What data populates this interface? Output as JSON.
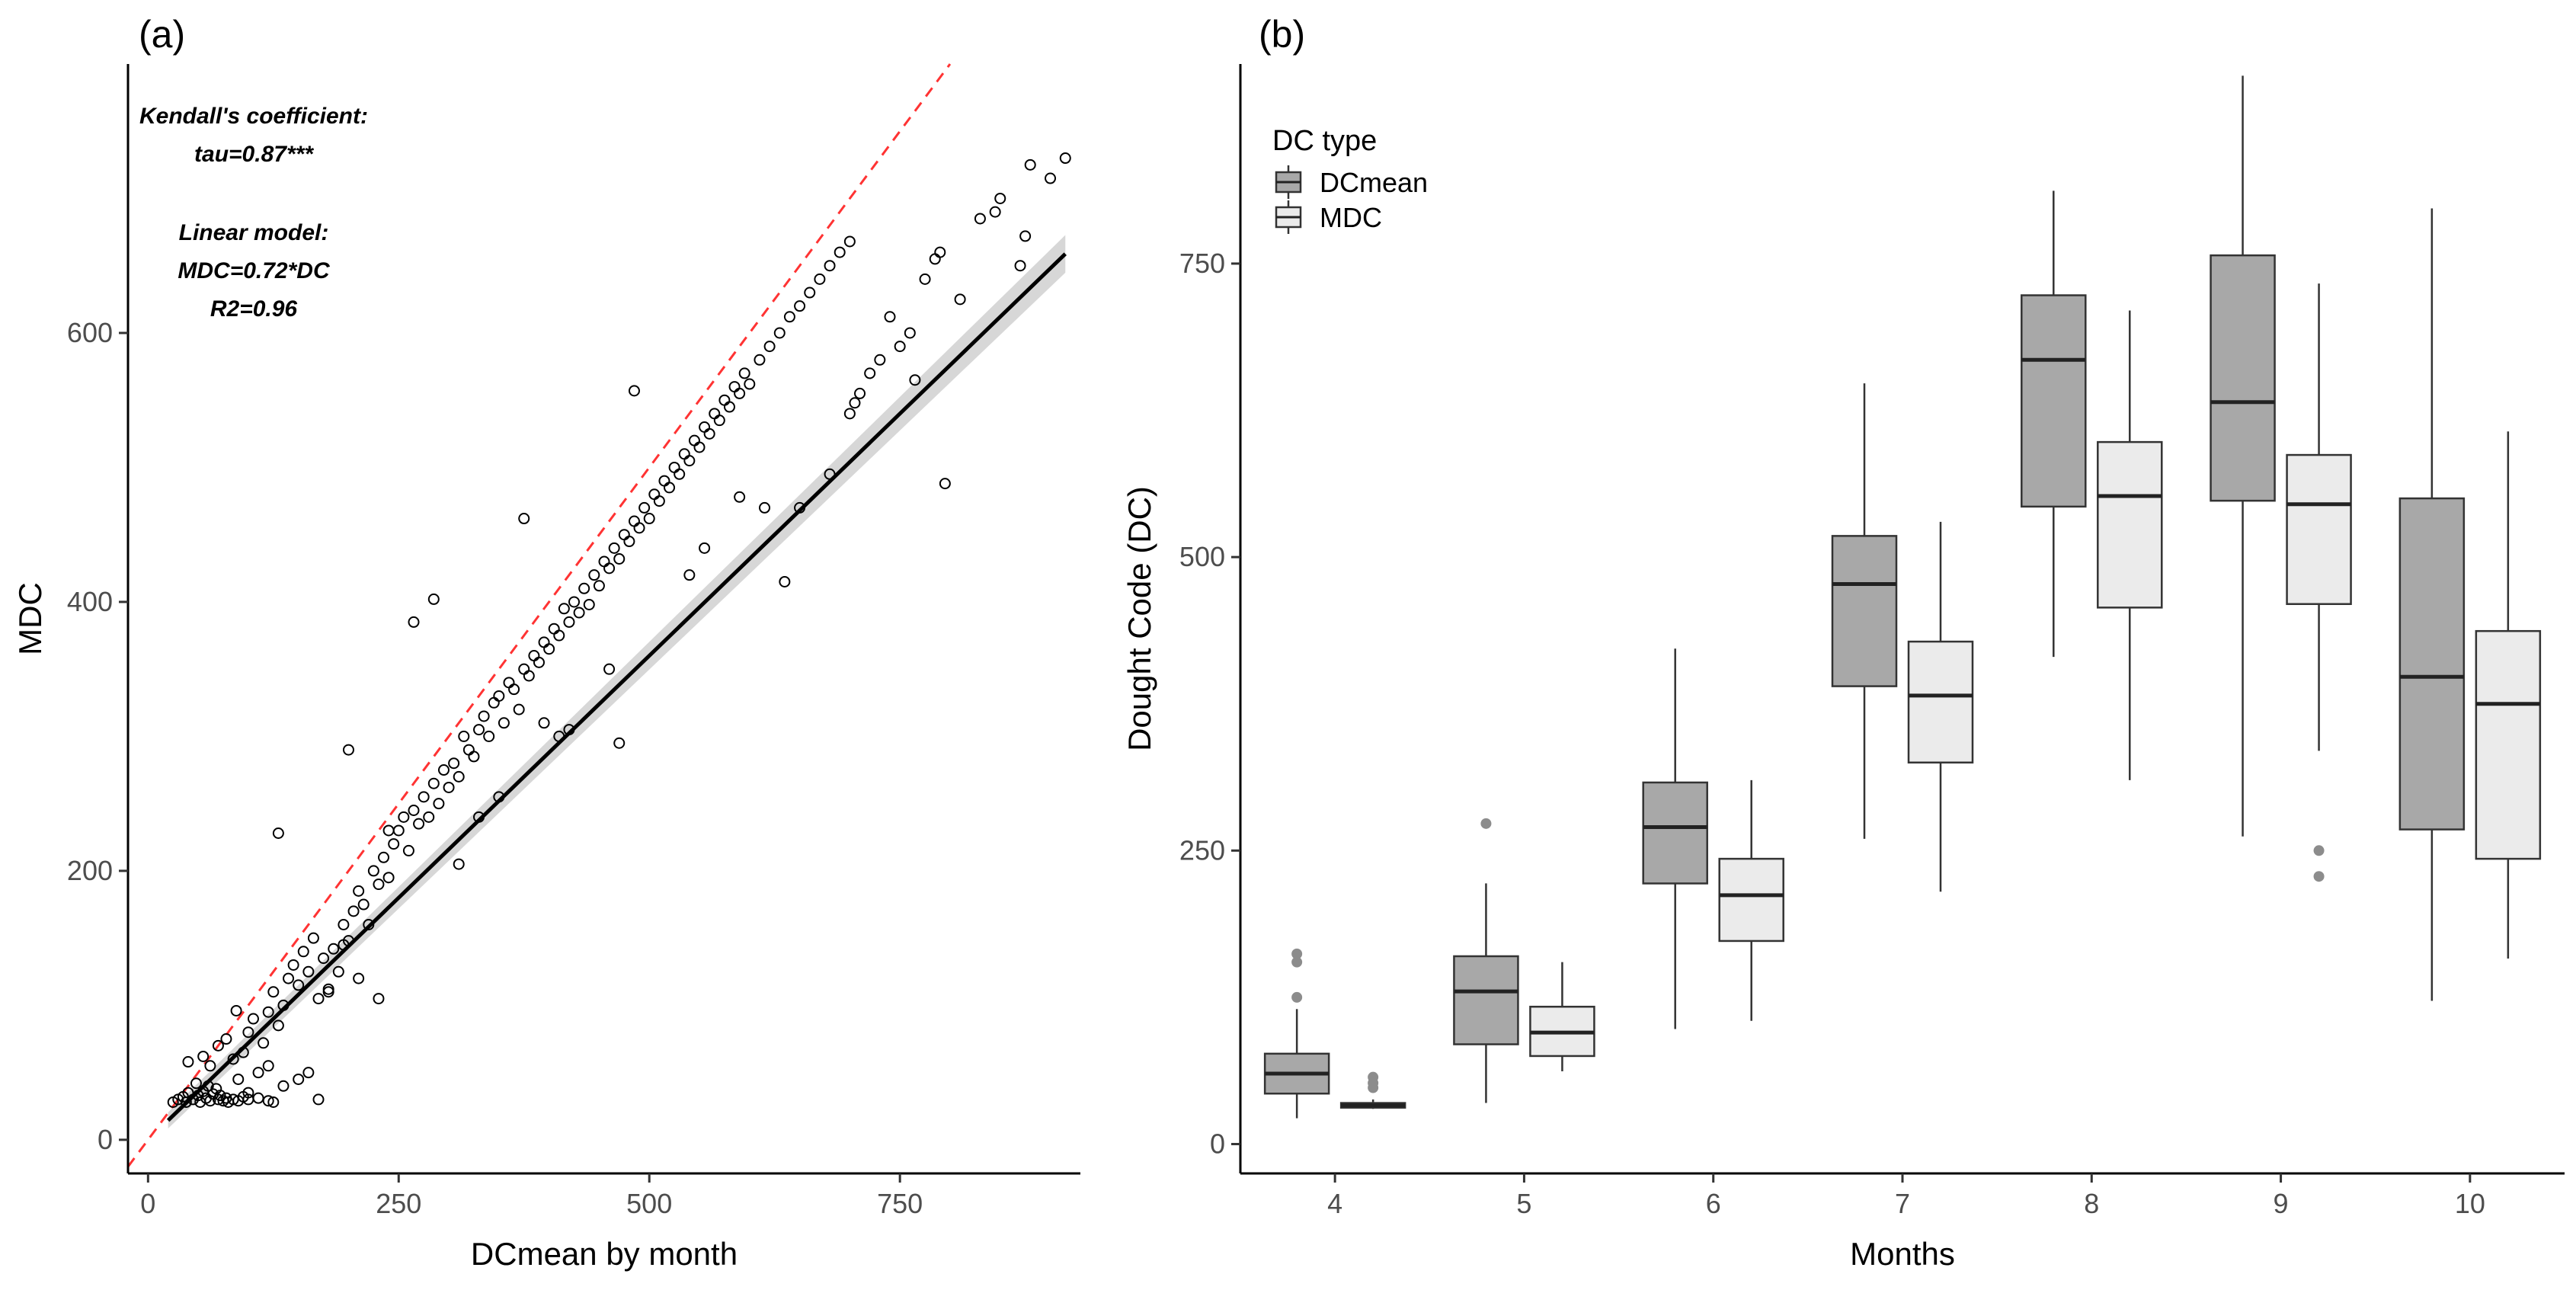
{
  "chart_data": [
    {
      "panel": "(a)",
      "type": "scatter",
      "xlabel": "DCmean by month",
      "ylabel": "MDC",
      "xlim": [
        -20,
        930
      ],
      "ylim": [
        -25,
        800
      ],
      "xticks": [
        0,
        250,
        500,
        750
      ],
      "yticks": [
        0,
        200,
        400,
        600
      ],
      "grid": false,
      "annotations": [
        "Kendall's coefficient:",
        "tau=0.87***",
        "Linear model:",
        "MDC=0.72*DC",
        "R2=0.96"
      ],
      "reference_line": {
        "style": "dashed",
        "color": "#ff3333",
        "slope": 1,
        "intercept": 0
      },
      "fit_line": {
        "color": "#000000",
        "slope": 0.72,
        "x_range": [
          20,
          915
        ]
      },
      "point_color": "#000000",
      "points": [
        [
          25,
          28
        ],
        [
          30,
          30
        ],
        [
          35,
          32
        ],
        [
          38,
          28
        ],
        [
          40,
          35
        ],
        [
          45,
          30
        ],
        [
          48,
          42
        ],
        [
          50,
          33
        ],
        [
          52,
          28
        ],
        [
          55,
          36
        ],
        [
          58,
          31
        ],
        [
          60,
          40
        ],
        [
          62,
          29
        ],
        [
          65,
          34
        ],
        [
          68,
          38
        ],
        [
          70,
          30
        ],
        [
          72,
          33
        ],
        [
          75,
          29
        ],
        [
          78,
          31
        ],
        [
          80,
          28
        ],
        [
          85,
          30
        ],
        [
          90,
          29
        ],
        [
          95,
          32
        ],
        [
          100,
          30
        ],
        [
          110,
          31
        ],
        [
          120,
          29
        ],
        [
          125,
          28
        ],
        [
          40,
          58
        ],
        [
          55,
          62
        ],
        [
          62,
          55
        ],
        [
          70,
          70
        ],
        [
          78,
          75
        ],
        [
          85,
          60
        ],
        [
          88,
          96
        ],
        [
          95,
          65
        ],
        [
          100,
          80
        ],
        [
          105,
          90
        ],
        [
          110,
          50
        ],
        [
          115,
          72
        ],
        [
          120,
          95
        ],
        [
          125,
          110
        ],
        [
          130,
          85
        ],
        [
          135,
          100
        ],
        [
          140,
          120
        ],
        [
          145,
          130
        ],
        [
          150,
          115
        ],
        [
          155,
          140
        ],
        [
          160,
          125
        ],
        [
          165,
          150
        ],
        [
          170,
          105
        ],
        [
          175,
          135
        ],
        [
          180,
          112
        ],
        [
          185,
          142
        ],
        [
          190,
          125
        ],
        [
          195,
          160
        ],
        [
          200,
          148
        ],
        [
          205,
          170
        ],
        [
          210,
          185
        ],
        [
          215,
          175
        ],
        [
          220,
          160
        ],
        [
          225,
          200
        ],
        [
          230,
          190
        ],
        [
          235,
          210
        ],
        [
          240,
          195
        ],
        [
          245,
          220
        ],
        [
          250,
          230
        ],
        [
          255,
          240
        ],
        [
          260,
          215
        ],
        [
          265,
          245
        ],
        [
          270,
          235
        ],
        [
          275,
          255
        ],
        [
          280,
          240
        ],
        [
          285,
          265
        ],
        [
          290,
          250
        ],
        [
          295,
          275
        ],
        [
          300,
          262
        ],
        [
          305,
          280
        ],
        [
          310,
          270
        ],
        [
          315,
          300
        ],
        [
          320,
          290
        ],
        [
          325,
          285
        ],
        [
          330,
          305
        ],
        [
          335,
          315
        ],
        [
          340,
          300
        ],
        [
          345,
          325
        ],
        [
          350,
          330
        ],
        [
          355,
          310
        ],
        [
          360,
          340
        ],
        [
          365,
          335
        ],
        [
          370,
          320
        ],
        [
          375,
          350
        ],
        [
          380,
          345
        ],
        [
          385,
          360
        ],
        [
          390,
          355
        ],
        [
          395,
          370
        ],
        [
          400,
          365
        ],
        [
          405,
          380
        ],
        [
          410,
          375
        ],
        [
          415,
          395
        ],
        [
          420,
          385
        ],
        [
          425,
          400
        ],
        [
          430,
          392
        ],
        [
          435,
          410
        ],
        [
          440,
          398
        ],
        [
          445,
          420
        ],
        [
          450,
          412
        ],
        [
          455,
          430
        ],
        [
          460,
          425
        ],
        [
          465,
          440
        ],
        [
          470,
          432
        ],
        [
          475,
          450
        ],
        [
          480,
          445
        ],
        [
          485,
          460
        ],
        [
          490,
          455
        ],
        [
          495,
          470
        ],
        [
          500,
          462
        ],
        [
          505,
          480
        ],
        [
          510,
          475
        ],
        [
          515,
          490
        ],
        [
          520,
          485
        ],
        [
          525,
          500
        ],
        [
          530,
          495
        ],
        [
          535,
          510
        ],
        [
          540,
          505
        ],
        [
          545,
          520
        ],
        [
          550,
          515
        ],
        [
          555,
          530
        ],
        [
          560,
          525
        ],
        [
          565,
          540
        ],
        [
          570,
          535
        ],
        [
          575,
          550
        ],
        [
          580,
          545
        ],
        [
          585,
          560
        ],
        [
          590,
          555
        ],
        [
          595,
          570
        ],
        [
          600,
          562
        ],
        [
          610,
          580
        ],
        [
          620,
          590
        ],
        [
          630,
          600
        ],
        [
          640,
          612
        ],
        [
          650,
          620
        ],
        [
          660,
          630
        ],
        [
          670,
          640
        ],
        [
          680,
          650
        ],
        [
          690,
          660
        ],
        [
          700,
          668
        ],
        [
          130,
          228
        ],
        [
          200,
          290
        ],
        [
          240,
          230
        ],
        [
          265,
          385
        ],
        [
          285,
          402
        ],
        [
          375,
          462
        ],
        [
          485,
          557
        ],
        [
          410,
          300
        ],
        [
          470,
          295
        ],
        [
          635,
          415
        ],
        [
          795,
          488
        ],
        [
          850,
          700
        ],
        [
          880,
          725
        ],
        [
          900,
          715
        ],
        [
          915,
          730
        ],
        [
          870,
          650
        ],
        [
          875,
          672
        ],
        [
          775,
          640
        ],
        [
          740,
          612
        ],
        [
          760,
          600
        ],
        [
          730,
          580
        ],
        [
          720,
          570
        ],
        [
          810,
          625
        ],
        [
          830,
          685
        ],
        [
          845,
          690
        ],
        [
          790,
          660
        ],
        [
          785,
          655
        ],
        [
          765,
          565
        ],
        [
          160,
          50
        ],
        [
          170,
          30
        ],
        [
          120,
          55
        ],
        [
          135,
          40
        ],
        [
          150,
          45
        ],
        [
          90,
          45
        ],
        [
          100,
          35
        ],
        [
          230,
          105
        ],
        [
          210,
          120
        ],
        [
          195,
          145
        ],
        [
          180,
          110
        ],
        [
          330,
          240
        ],
        [
          350,
          255
        ],
        [
          310,
          205
        ],
        [
          395,
          310
        ],
        [
          420,
          305
        ],
        [
          460,
          350
        ],
        [
          540,
          420
        ],
        [
          555,
          440
        ],
        [
          590,
          478
        ],
        [
          615,
          470
        ],
        [
          650,
          470
        ],
        [
          680,
          495
        ],
        [
          700,
          540
        ],
        [
          705,
          548
        ],
        [
          710,
          555
        ],
        [
          750,
          590
        ]
      ]
    },
    {
      "panel": "(b)",
      "type": "box",
      "xlabel": "Months",
      "ylabel": "Dought Code (DC)",
      "categories": [
        "4",
        "5",
        "6",
        "7",
        "8",
        "9",
        "10"
      ],
      "ylim": [
        -25,
        920
      ],
      "yticks": [
        0,
        250,
        500,
        750
      ],
      "grid": false,
      "legend": {
        "title": "DC type",
        "position": "top-left",
        "entries": [
          {
            "name": "DCmean",
            "color": "#a8a8a8"
          },
          {
            "name": "MDC",
            "color": "#ebebeb"
          }
        ]
      },
      "series": [
        {
          "name": "DCmean",
          "color": "#a8a8a8",
          "boxes": [
            {
              "min": 22,
              "q1": 43,
              "median": 60,
              "q3": 77,
              "max": 115,
              "outliers": [
                125,
                155,
                162
              ]
            },
            {
              "min": 35,
              "q1": 85,
              "median": 130,
              "q3": 160,
              "max": 222,
              "outliers": [
                273
              ]
            },
            {
              "min": 98,
              "q1": 222,
              "median": 270,
              "q3": 308,
              "max": 422,
              "outliers": []
            },
            {
              "min": 260,
              "q1": 390,
              "median": 477,
              "q3": 518,
              "max": 648,
              "outliers": []
            },
            {
              "min": 415,
              "q1": 543,
              "median": 668,
              "q3": 723,
              "max": 812,
              "outliers": []
            },
            {
              "min": 262,
              "q1": 548,
              "median": 632,
              "q3": 757,
              "max": 910,
              "outliers": []
            },
            {
              "min": 122,
              "q1": 268,
              "median": 398,
              "q3": 550,
              "max": 797,
              "outliers": []
            }
          ]
        },
        {
          "name": "MDC",
          "color": "#ebebeb",
          "boxes": [
            {
              "min": 30,
              "q1": 31,
              "median": 33,
              "q3": 35,
              "max": 38,
              "outliers": [
                48,
                52,
                57
              ]
            },
            {
              "min": 62,
              "q1": 75,
              "median": 95,
              "q3": 117,
              "max": 155,
              "outliers": []
            },
            {
              "min": 105,
              "q1": 173,
              "median": 212,
              "q3": 243,
              "max": 310,
              "outliers": []
            },
            {
              "min": 215,
              "q1": 325,
              "median": 382,
              "q3": 428,
              "max": 530,
              "outliers": []
            },
            {
              "min": 310,
              "q1": 457,
              "median": 552,
              "q3": 598,
              "max": 710,
              "outliers": []
            },
            {
              "min": 335,
              "q1": 460,
              "median": 545,
              "q3": 587,
              "max": 733,
              "outliers": [
                228,
                250
              ]
            },
            {
              "min": 158,
              "q1": 243,
              "median": 375,
              "q3": 437,
              "max": 607,
              "outliers": []
            }
          ]
        }
      ]
    }
  ]
}
